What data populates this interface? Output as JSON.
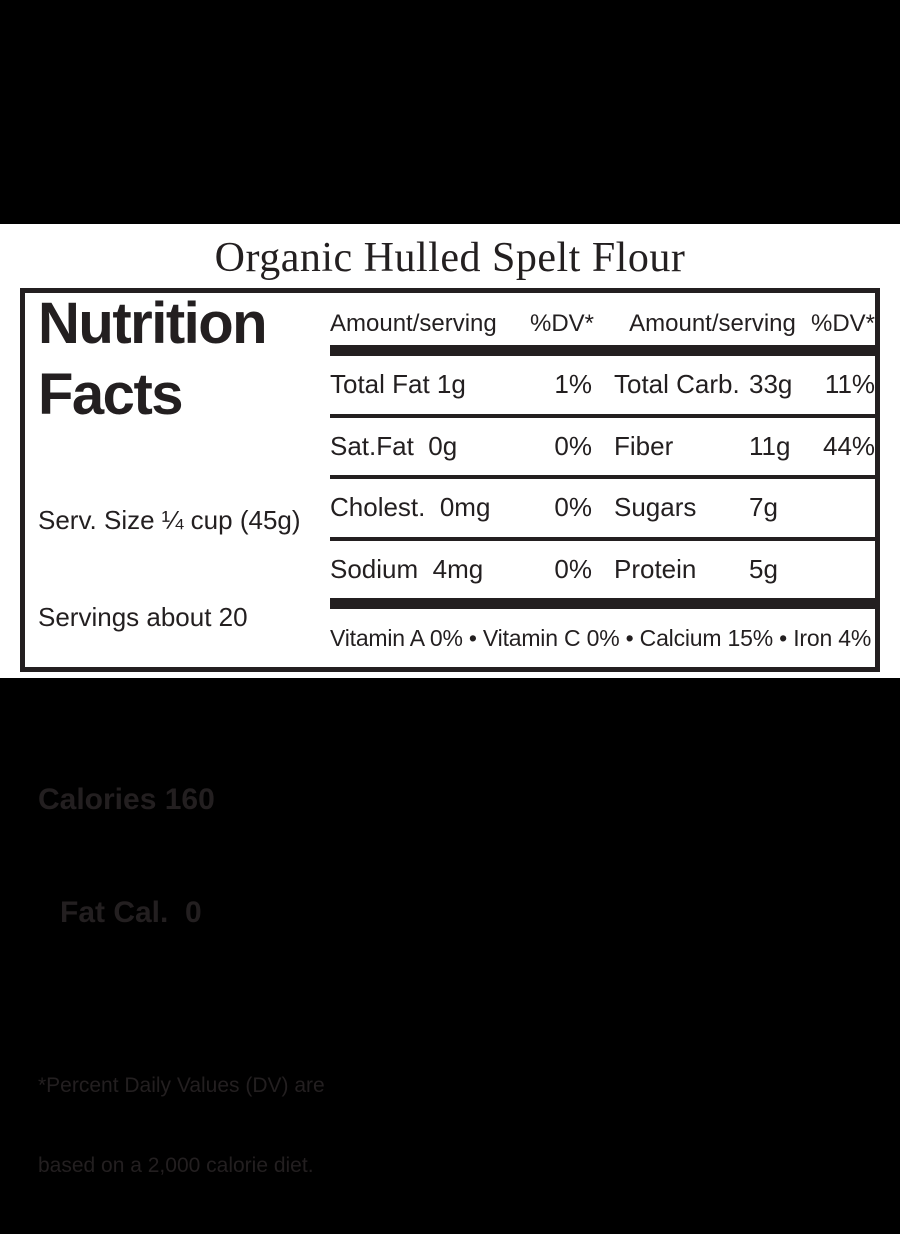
{
  "title": "Organic Hulled Spelt Flour",
  "label": {
    "heading_line1": "Nutrition",
    "heading_line2": "Facts",
    "serving_size": "Serv. Size ¼ cup (45g)",
    "servings": "Servings about 20",
    "calories": "Calories 160",
    "fat_calories": "Fat Cal.  0",
    "footnote_line1": "*Percent Daily Values (DV) are",
    "footnote_line2": "based on a 2,000 calorie diet.",
    "table": {
      "header": {
        "amount_col1": "Amount/serving",
        "dv_col1": "%DV*",
        "amount_col2": "Amount/serving",
        "dv_col2": "%DV*"
      },
      "rows": [
        {
          "left": "Total Fat 1g",
          "left_dv": "1%",
          "right": "Total Carb.",
          "right_amount": "33g",
          "right_dv": "11%"
        },
        {
          "left": "Sat.Fat  0g",
          "left_dv": "0%",
          "right": "Fiber",
          "right_amount": "11g",
          "right_dv": "44%"
        },
        {
          "left": "Cholest.  0mg",
          "left_dv": "0%",
          "right": "Sugars",
          "right_amount": "7g",
          "right_dv": ""
        },
        {
          "left": "Sodium  4mg",
          "left_dv": "0%",
          "right": "Protein",
          "right_amount": "5g",
          "right_dv": ""
        }
      ],
      "vitamins": "Vitamin A 0% • Vitamin C 0% • Calcium 15% • Iron 4%"
    }
  },
  "colors": {
    "text": "#231f20",
    "background": "#ffffff",
    "letterbox": "#000000"
  }
}
